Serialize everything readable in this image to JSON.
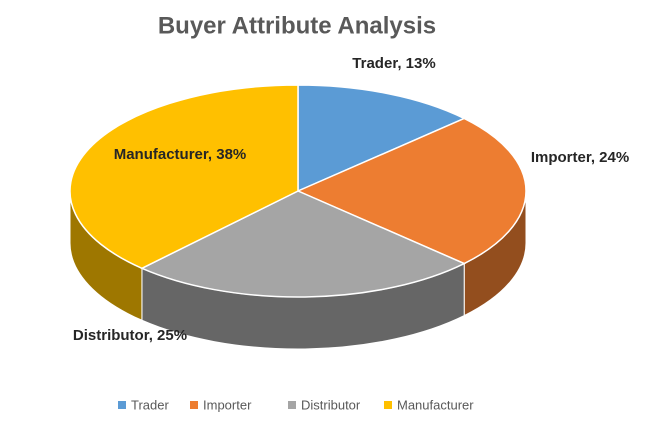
{
  "chart_data": {
    "type": "pie3d",
    "title": "Buyer Attribute Analysis",
    "categories": [
      "Trader",
      "Importer",
      "Distributor",
      "Manufacturer"
    ],
    "values": [
      13,
      24,
      25,
      38
    ],
    "value_labels": [
      "Trader, 13%",
      "Importer, 24%",
      "Distributor, 25%",
      "Manufacturer, 38%"
    ],
    "colors": [
      "#5b9bd5",
      "#ed7d31",
      "#a5a5a5",
      "#ffc000"
    ],
    "legend": "bottom"
  }
}
